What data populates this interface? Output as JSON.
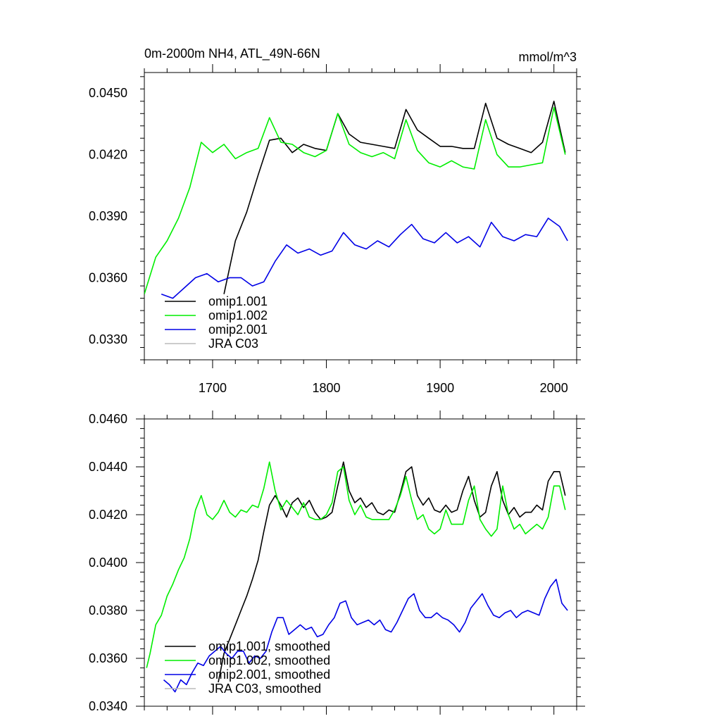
{
  "chart_data": [
    {
      "type": "line",
      "title": "0m-2000m NH4, ATL_49N-66N",
      "units": "mmol/m^3",
      "xlim": [
        1640,
        2020
      ],
      "ylim": [
        0.032,
        0.046
      ],
      "xticks": [
        1700,
        1800,
        1900,
        2000
      ],
      "xtick_labels": [
        "1700",
        "1800",
        "1900",
        "2000"
      ],
      "yticks": [
        0.033,
        0.036,
        0.039,
        0.042,
        0.045
      ],
      "ytick_labels": [
        "0.0330",
        "0.0360",
        "0.0390",
        "0.0420",
        "0.0450"
      ],
      "grid": false,
      "legend": "bottom-left",
      "legend_entries": [
        "omip1.001",
        "omip1.002",
        "omip2.001",
        "JRA C03"
      ],
      "series": [
        {
          "name": "omip1.001",
          "color": "#000000",
          "x": [
            1710,
            1720,
            1730,
            1740,
            1750,
            1760,
            1770,
            1780,
            1790,
            1800,
            1810,
            1820,
            1830,
            1840,
            1850,
            1860,
            1870,
            1880,
            1890,
            1900,
            1910,
            1920,
            1930,
            1940,
            1950,
            1960,
            1970,
            1980,
            1990,
            2000,
            2010
          ],
          "y": [
            0.0352,
            0.0378,
            0.0392,
            0.041,
            0.0427,
            0.0428,
            0.0421,
            0.0425,
            0.0423,
            0.0422,
            0.044,
            0.043,
            0.0426,
            0.0425,
            0.0424,
            0.0423,
            0.0442,
            0.0432,
            0.0428,
            0.0424,
            0.0424,
            0.0423,
            0.0423,
            0.0445,
            0.0428,
            0.0425,
            0.0423,
            0.0421,
            0.0426,
            0.0446,
            0.0421
          ]
        },
        {
          "name": "omip1.002",
          "color": "#00ee00",
          "x": [
            1640,
            1650,
            1660,
            1670,
            1680,
            1690,
            1700,
            1710,
            1720,
            1730,
            1740,
            1750,
            1760,
            1770,
            1780,
            1790,
            1800,
            1810,
            1820,
            1830,
            1840,
            1850,
            1860,
            1870,
            1880,
            1890,
            1900,
            1910,
            1920,
            1930,
            1940,
            1950,
            1960,
            1970,
            1980,
            1990,
            2000,
            2010
          ],
          "y": [
            0.0352,
            0.037,
            0.0378,
            0.0389,
            0.0404,
            0.0426,
            0.0421,
            0.0425,
            0.0418,
            0.0421,
            0.0423,
            0.0438,
            0.0426,
            0.0425,
            0.0421,
            0.0419,
            0.0422,
            0.044,
            0.0425,
            0.0421,
            0.0419,
            0.0421,
            0.0418,
            0.0437,
            0.0422,
            0.0416,
            0.0414,
            0.0417,
            0.0414,
            0.0413,
            0.0437,
            0.042,
            0.0414,
            0.0414,
            0.0415,
            0.0416,
            0.0443,
            0.042
          ]
        },
        {
          "name": "omip2.001",
          "color": "#0000e6",
          "x": [
            1655,
            1665,
            1675,
            1685,
            1695,
            1705,
            1715,
            1725,
            1735,
            1745,
            1755,
            1765,
            1775,
            1785,
            1795,
            1805,
            1815,
            1825,
            1835,
            1845,
            1855,
            1865,
            1875,
            1885,
            1895,
            1905,
            1915,
            1925,
            1935,
            1945,
            1955,
            1965,
            1975,
            1985,
            1995,
            2005,
            2012
          ],
          "y": [
            0.0352,
            0.035,
            0.0355,
            0.036,
            0.0362,
            0.0358,
            0.036,
            0.036,
            0.0356,
            0.0358,
            0.0368,
            0.0376,
            0.0372,
            0.0374,
            0.0371,
            0.0373,
            0.0382,
            0.0376,
            0.0374,
            0.0378,
            0.0375,
            0.0381,
            0.0386,
            0.0379,
            0.0377,
            0.0382,
            0.0377,
            0.038,
            0.0375,
            0.0387,
            0.038,
            0.0378,
            0.0381,
            0.038,
            0.0389,
            0.0385,
            0.0378
          ]
        },
        {
          "name": "JRA C03",
          "color": "#bbbbbb",
          "x": [],
          "y": []
        }
      ]
    },
    {
      "type": "line",
      "xlim": [
        1640,
        2020
      ],
      "ylim": [
        0.034,
        0.046
      ],
      "xticks": [
        1700,
        1800,
        1900,
        2000
      ],
      "xtick_labels": [],
      "yticks": [
        0.034,
        0.036,
        0.038,
        0.04,
        0.042,
        0.044,
        0.046
      ],
      "ytick_labels": [
        "0.0340",
        "0.0360",
        "0.0380",
        "0.0400",
        "0.0420",
        "0.0440",
        "0.0460"
      ],
      "grid": false,
      "legend": "bottom-left",
      "legend_entries": [
        "omip1.001, smoothed",
        "omip1.002, smoothed",
        "omip2.001, smoothed",
        "JRA C03, smoothed"
      ],
      "series": [
        {
          "name": "omip1.001, smoothed",
          "color": "#000000",
          "x": [
            1705,
            1710,
            1715,
            1720,
            1725,
            1730,
            1735,
            1740,
            1745,
            1750,
            1755,
            1760,
            1765,
            1770,
            1775,
            1780,
            1785,
            1790,
            1795,
            1800,
            1805,
            1810,
            1815,
            1820,
            1825,
            1830,
            1835,
            1840,
            1845,
            1850,
            1855,
            1860,
            1865,
            1870,
            1875,
            1880,
            1885,
            1890,
            1895,
            1900,
            1905,
            1910,
            1915,
            1920,
            1925,
            1930,
            1935,
            1940,
            1945,
            1950,
            1955,
            1960,
            1965,
            1970,
            1975,
            1980,
            1985,
            1990,
            1995,
            2000,
            2005,
            2010
          ],
          "y": [
            0.035,
            0.0362,
            0.0368,
            0.0374,
            0.038,
            0.0386,
            0.0393,
            0.0401,
            0.0413,
            0.0424,
            0.0428,
            0.0424,
            0.0419,
            0.0425,
            0.0427,
            0.0423,
            0.0426,
            0.0421,
            0.0418,
            0.0419,
            0.0421,
            0.0432,
            0.0442,
            0.043,
            0.0425,
            0.0427,
            0.0423,
            0.0425,
            0.0421,
            0.042,
            0.0422,
            0.0421,
            0.0429,
            0.0438,
            0.044,
            0.0428,
            0.0424,
            0.0427,
            0.0422,
            0.0421,
            0.0424,
            0.0421,
            0.0422,
            0.043,
            0.0436,
            0.0426,
            0.0419,
            0.0421,
            0.0432,
            0.0438,
            0.0426,
            0.042,
            0.0423,
            0.0419,
            0.0421,
            0.0421,
            0.0424,
            0.0422,
            0.0434,
            0.0438,
            0.0438,
            0.0428
          ]
        },
        {
          "name": "omip1.002, smoothed",
          "color": "#00ee00",
          "x": [
            1642,
            1645,
            1650,
            1655,
            1660,
            1665,
            1670,
            1675,
            1680,
            1685,
            1690,
            1695,
            1700,
            1705,
            1710,
            1715,
            1720,
            1725,
            1730,
            1735,
            1740,
            1745,
            1750,
            1755,
            1760,
            1765,
            1770,
            1775,
            1780,
            1785,
            1790,
            1795,
            1800,
            1805,
            1810,
            1815,
            1820,
            1825,
            1830,
            1835,
            1840,
            1845,
            1850,
            1855,
            1860,
            1865,
            1870,
            1875,
            1880,
            1885,
            1890,
            1895,
            1900,
            1905,
            1910,
            1915,
            1920,
            1925,
            1930,
            1935,
            1940,
            1945,
            1950,
            1955,
            1960,
            1965,
            1970,
            1975,
            1980,
            1985,
            1990,
            1995,
            2000,
            2005,
            2010
          ],
          "y": [
            0.0356,
            0.0362,
            0.0374,
            0.0378,
            0.0386,
            0.0391,
            0.0397,
            0.0402,
            0.041,
            0.0422,
            0.0428,
            0.042,
            0.0418,
            0.0421,
            0.0426,
            0.0421,
            0.0419,
            0.0422,
            0.0421,
            0.0424,
            0.0423,
            0.0431,
            0.0442,
            0.043,
            0.0422,
            0.0426,
            0.0423,
            0.042,
            0.0425,
            0.0419,
            0.0418,
            0.0418,
            0.042,
            0.0425,
            0.0438,
            0.044,
            0.0426,
            0.042,
            0.0424,
            0.0419,
            0.0418,
            0.0418,
            0.0418,
            0.0418,
            0.0422,
            0.0428,
            0.0436,
            0.0426,
            0.0418,
            0.042,
            0.0414,
            0.0412,
            0.0414,
            0.0422,
            0.0416,
            0.0416,
            0.0416,
            0.0426,
            0.0432,
            0.0418,
            0.0414,
            0.0411,
            0.0414,
            0.0432,
            0.042,
            0.0414,
            0.0416,
            0.0412,
            0.0414,
            0.0416,
            0.0414,
            0.0419,
            0.0432,
            0.0432,
            0.0422
          ]
        },
        {
          "name": "omip2.001, smoothed",
          "color": "#0000e6",
          "x": [
            1657,
            1662,
            1667,
            1672,
            1677,
            1682,
            1687,
            1692,
            1697,
            1702,
            1707,
            1712,
            1717,
            1722,
            1727,
            1732,
            1737,
            1742,
            1747,
            1752,
            1757,
            1762,
            1767,
            1772,
            1777,
            1782,
            1787,
            1792,
            1797,
            1802,
            1807,
            1812,
            1817,
            1822,
            1827,
            1832,
            1837,
            1842,
            1847,
            1852,
            1857,
            1862,
            1867,
            1872,
            1877,
            1882,
            1887,
            1892,
            1897,
            1902,
            1907,
            1912,
            1917,
            1922,
            1927,
            1932,
            1937,
            1942,
            1947,
            1952,
            1957,
            1962,
            1967,
            1972,
            1977,
            1982,
            1987,
            1992,
            1997,
            2002,
            2007,
            2012
          ],
          "y": [
            0.0351,
            0.0349,
            0.0346,
            0.0351,
            0.0349,
            0.0354,
            0.0358,
            0.0357,
            0.0361,
            0.0363,
            0.0365,
            0.0362,
            0.036,
            0.0363,
            0.0363,
            0.0358,
            0.0361,
            0.036,
            0.0363,
            0.0371,
            0.0377,
            0.0377,
            0.037,
            0.0372,
            0.0374,
            0.0372,
            0.0373,
            0.0369,
            0.037,
            0.0374,
            0.0377,
            0.0383,
            0.0384,
            0.0377,
            0.0374,
            0.0375,
            0.0376,
            0.0374,
            0.0376,
            0.0372,
            0.0371,
            0.0375,
            0.038,
            0.0385,
            0.0387,
            0.038,
            0.0377,
            0.0377,
            0.0379,
            0.0377,
            0.0376,
            0.0374,
            0.0371,
            0.0375,
            0.0381,
            0.0384,
            0.0387,
            0.0382,
            0.0378,
            0.0377,
            0.0379,
            0.038,
            0.0377,
            0.0379,
            0.038,
            0.0379,
            0.0378,
            0.0385,
            0.039,
            0.0393,
            0.0383,
            0.038
          ]
        },
        {
          "name": "JRA C03, smoothed",
          "color": "#bbbbbb",
          "x": [],
          "y": []
        }
      ]
    }
  ]
}
